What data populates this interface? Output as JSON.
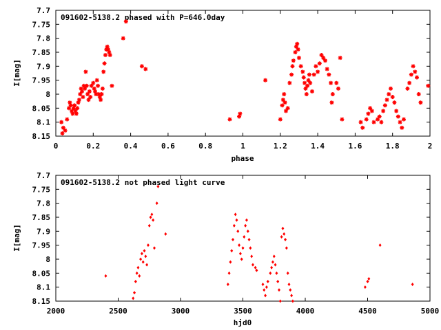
{
  "chart_data": [
    {
      "type": "scatter",
      "title": "091602-5138.2 phased with P=646.0day",
      "xlabel": "phase",
      "ylabel": "I[mag]",
      "xlim": [
        0,
        2
      ],
      "ylim": [
        8.15,
        7.7
      ],
      "y_inverted": true,
      "xticks": [
        0,
        0.2,
        0.4,
        0.6,
        0.8,
        1,
        1.2,
        1.4,
        1.6,
        1.8,
        2
      ],
      "xtick_labels": [
        "0",
        "0.2",
        "0.4",
        "0.6",
        "0.8",
        "1",
        "1.2",
        "1.4",
        "1.6",
        "1.8",
        "2"
      ],
      "yticks": [
        7.7,
        7.75,
        7.8,
        7.85,
        7.9,
        7.95,
        8,
        8.05,
        8.1,
        8.15
      ],
      "ytick_labels": [
        "7.7",
        "7.75",
        "7.8",
        "7.85",
        "7.9",
        "7.95",
        "8",
        "8.05",
        "8.1",
        "8.15"
      ],
      "grid": false,
      "marker_color": "#ff0000",
      "marker": "star",
      "points": [
        [
          0.03,
          8.1
        ],
        [
          0.035,
          8.14
        ],
        [
          0.04,
          8.12
        ],
        [
          0.05,
          8.13
        ],
        [
          0.06,
          8.09
        ],
        [
          0.07,
          8.05
        ],
        [
          0.075,
          8.03
        ],
        [
          0.08,
          8.04
        ],
        [
          0.085,
          8.06
        ],
        [
          0.09,
          8.07
        ],
        [
          0.095,
          8.05
        ],
        [
          0.1,
          8.04
        ],
        [
          0.105,
          8.06
        ],
        [
          0.11,
          8.07
        ],
        [
          0.115,
          8.05
        ],
        [
          0.12,
          8.03
        ],
        [
          0.125,
          8.02
        ],
        [
          0.13,
          8.0
        ],
        [
          0.135,
          7.98
        ],
        [
          0.14,
          7.99
        ],
        [
          0.145,
          8.01
        ],
        [
          0.15,
          7.97
        ],
        [
          0.155,
          7.98
        ],
        [
          0.16,
          7.92
        ],
        [
          0.165,
          7.97
        ],
        [
          0.17,
          8.0
        ],
        [
          0.175,
          8.02
        ],
        [
          0.18,
          7.99
        ],
        [
          0.185,
          8.01
        ],
        [
          0.19,
          7.97
        ],
        [
          0.2,
          7.96
        ],
        [
          0.205,
          7.98
        ],
        [
          0.21,
          7.99
        ],
        [
          0.215,
          8.0
        ],
        [
          0.22,
          7.95
        ],
        [
          0.225,
          7.97
        ],
        [
          0.23,
          8.0
        ],
        [
          0.235,
          8.01
        ],
        [
          0.24,
          8.02
        ],
        [
          0.245,
          8.0
        ],
        [
          0.25,
          7.98
        ],
        [
          0.255,
          7.92
        ],
        [
          0.26,
          7.89
        ],
        [
          0.265,
          7.86
        ],
        [
          0.27,
          7.84
        ],
        [
          0.275,
          7.83
        ],
        [
          0.28,
          7.84
        ],
        [
          0.285,
          7.85
        ],
        [
          0.29,
          7.86
        ],
        [
          0.3,
          7.97
        ],
        [
          0.36,
          7.8
        ],
        [
          0.375,
          7.74
        ],
        [
          0.46,
          7.9
        ],
        [
          0.48,
          7.91
        ],
        [
          0.93,
          8.09
        ],
        [
          0.98,
          8.08
        ],
        [
          0.985,
          8.07
        ],
        [
          1.12,
          7.95
        ],
        [
          1.2,
          8.09
        ],
        [
          1.21,
          8.04
        ],
        [
          1.215,
          8.02
        ],
        [
          1.22,
          8.0
        ],
        [
          1.225,
          8.03
        ],
        [
          1.23,
          8.06
        ],
        [
          1.24,
          8.05
        ],
        [
          1.25,
          7.96
        ],
        [
          1.26,
          7.93
        ],
        [
          1.265,
          7.9
        ],
        [
          1.27,
          7.88
        ],
        [
          1.28,
          7.85
        ],
        [
          1.285,
          7.83
        ],
        [
          1.29,
          7.82
        ],
        [
          1.295,
          7.84
        ],
        [
          1.3,
          7.87
        ],
        [
          1.31,
          7.9
        ],
        [
          1.32,
          7.92
        ],
        [
          1.325,
          7.94
        ],
        [
          1.33,
          7.96
        ],
        [
          1.335,
          7.98
        ],
        [
          1.34,
          8.0
        ],
        [
          1.345,
          7.97
        ],
        [
          1.35,
          7.95
        ],
        [
          1.355,
          7.93
        ],
        [
          1.36,
          7.96
        ],
        [
          1.37,
          7.99
        ],
        [
          1.38,
          7.93
        ],
        [
          1.39,
          7.9
        ],
        [
          1.4,
          7.92
        ],
        [
          1.41,
          7.89
        ],
        [
          1.42,
          7.86
        ],
        [
          1.43,
          7.87
        ],
        [
          1.44,
          7.88
        ],
        [
          1.45,
          7.91
        ],
        [
          1.46,
          7.93
        ],
        [
          1.47,
          7.96
        ],
        [
          1.475,
          8.03
        ],
        [
          1.48,
          8.0
        ],
        [
          1.5,
          7.96
        ],
        [
          1.51,
          7.98
        ],
        [
          1.52,
          7.87
        ],
        [
          1.53,
          8.09
        ],
        [
          1.63,
          8.1
        ],
        [
          1.64,
          8.12
        ],
        [
          1.66,
          8.09
        ],
        [
          1.67,
          8.07
        ],
        [
          1.68,
          8.05
        ],
        [
          1.69,
          8.06
        ],
        [
          1.7,
          8.1
        ],
        [
          1.72,
          8.09
        ],
        [
          1.73,
          8.08
        ],
        [
          1.74,
          8.1
        ],
        [
          1.75,
          8.06
        ],
        [
          1.76,
          8.04
        ],
        [
          1.77,
          8.02
        ],
        [
          1.78,
          8.0
        ],
        [
          1.79,
          7.98
        ],
        [
          1.8,
          8.01
        ],
        [
          1.81,
          8.03
        ],
        [
          1.82,
          8.06
        ],
        [
          1.83,
          8.08
        ],
        [
          1.84,
          8.1
        ],
        [
          1.85,
          8.12
        ],
        [
          1.86,
          8.09
        ],
        [
          1.88,
          7.98
        ],
        [
          1.89,
          7.96
        ],
        [
          1.9,
          7.93
        ],
        [
          1.91,
          7.9
        ],
        [
          1.92,
          7.92
        ],
        [
          1.93,
          7.94
        ],
        [
          1.94,
          8.0
        ],
        [
          1.95,
          8.03
        ],
        [
          1.99,
          7.97
        ]
      ]
    },
    {
      "type": "scatter",
      "title": "091602-5138.2 not phased light curve",
      "xlabel": "hjd0",
      "ylabel": "I[mag]",
      "xlim": [
        2000,
        5000
      ],
      "ylim": [
        8.15,
        7.7
      ],
      "y_inverted": true,
      "xticks": [
        2000,
        2500,
        3000,
        3500,
        4000,
        4500,
        5000
      ],
      "xtick_labels": [
        "2000",
        "2500",
        "3000",
        "3500",
        "4000",
        "4500",
        "5000"
      ],
      "yticks": [
        7.7,
        7.75,
        7.8,
        7.85,
        7.9,
        7.95,
        8,
        8.05,
        8.1,
        8.15
      ],
      "ytick_labels": [
        "7.7",
        "7.75",
        "7.8",
        "7.85",
        "7.9",
        "7.95",
        "8",
        "8.05",
        "8.1",
        "8.15"
      ],
      "grid": false,
      "marker_color": "#ff0000",
      "marker": "diamond",
      "points": [
        [
          2400,
          8.06
        ],
        [
          2620,
          8.14
        ],
        [
          2630,
          8.12
        ],
        [
          2640,
          8.08
        ],
        [
          2650,
          8.05
        ],
        [
          2660,
          8.03
        ],
        [
          2670,
          8.06
        ],
        [
          2680,
          8.0
        ],
        [
          2690,
          7.98
        ],
        [
          2700,
          8.01
        ],
        [
          2710,
          7.97
        ],
        [
          2720,
          7.99
        ],
        [
          2730,
          8.02
        ],
        [
          2740,
          7.95
        ],
        [
          2750,
          7.88
        ],
        [
          2760,
          7.85
        ],
        [
          2770,
          7.84
        ],
        [
          2780,
          7.86
        ],
        [
          2790,
          7.96
        ],
        [
          2810,
          7.8
        ],
        [
          2820,
          7.74
        ],
        [
          2880,
          7.91
        ],
        [
          3380,
          8.09
        ],
        [
          3390,
          8.05
        ],
        [
          3400,
          8.01
        ],
        [
          3410,
          7.97
        ],
        [
          3420,
          7.93
        ],
        [
          3430,
          7.88
        ],
        [
          3440,
          7.84
        ],
        [
          3450,
          7.86
        ],
        [
          3460,
          7.9
        ],
        [
          3470,
          7.95
        ],
        [
          3480,
          7.98
        ],
        [
          3490,
          8.0
        ],
        [
          3500,
          7.96
        ],
        [
          3510,
          7.92
        ],
        [
          3520,
          7.88
        ],
        [
          3530,
          7.86
        ],
        [
          3540,
          7.9
        ],
        [
          3550,
          7.93
        ],
        [
          3560,
          7.96
        ],
        [
          3570,
          7.99
        ],
        [
          3580,
          8.02
        ],
        [
          3600,
          8.03
        ],
        [
          3610,
          8.04
        ],
        [
          3660,
          8.09
        ],
        [
          3670,
          8.11
        ],
        [
          3680,
          8.13
        ],
        [
          3690,
          8.1
        ],
        [
          3700,
          8.08
        ],
        [
          3720,
          8.05
        ],
        [
          3730,
          8.03
        ],
        [
          3740,
          8.01
        ],
        [
          3750,
          7.99
        ],
        [
          3760,
          8.02
        ],
        [
          3770,
          8.05
        ],
        [
          3780,
          8.08
        ],
        [
          3790,
          8.11
        ],
        [
          3800,
          8.15
        ],
        [
          3810,
          7.92
        ],
        [
          3820,
          7.89
        ],
        [
          3830,
          7.91
        ],
        [
          3840,
          7.93
        ],
        [
          3850,
          7.96
        ],
        [
          3860,
          8.05
        ],
        [
          3870,
          8.09
        ],
        [
          3880,
          8.11
        ],
        [
          3890,
          8.13
        ],
        [
          3900,
          8.15
        ],
        [
          4480,
          8.1
        ],
        [
          4500,
          8.08
        ],
        [
          4510,
          8.07
        ],
        [
          4600,
          7.95
        ],
        [
          4860,
          8.09
        ]
      ]
    }
  ]
}
